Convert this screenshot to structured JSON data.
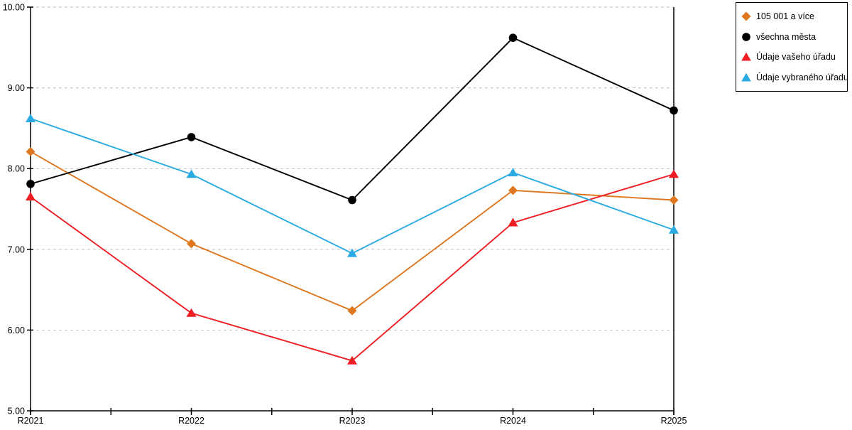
{
  "chart_data": {
    "type": "line",
    "title": "",
    "xlabel": "",
    "ylabel": "",
    "categories": [
      "R2021",
      "R2022",
      "R2023",
      "R2024",
      "R2025"
    ],
    "series": [
      {
        "name": "105 001 a více",
        "marker": "diamond",
        "color": "#DE771F",
        "values": [
          8.21,
          7.07,
          6.24,
          7.73,
          7.61
        ]
      },
      {
        "name": "všechna města",
        "marker": "circle",
        "color": "#000000",
        "values": [
          7.81,
          8.39,
          7.61,
          9.62,
          8.72
        ]
      },
      {
        "name": "Údaje vašeho úřadu",
        "marker": "triangle",
        "color": "#EE1D23",
        "values": [
          7.65,
          6.21,
          5.62,
          7.33,
          7.93
        ]
      },
      {
        "name": "Údaje vybraného úřadu",
        "marker": "triangle",
        "color": "#29ABE2",
        "values": [
          8.62,
          7.93,
          6.95,
          7.95,
          7.24
        ]
      }
    ],
    "yaxis": {
      "min": 5,
      "max": 10,
      "ticks": [
        {
          "value": 10,
          "label": "10.00"
        },
        {
          "value": 9,
          "label": "9.00"
        },
        {
          "value": 8,
          "label": "8.00"
        },
        {
          "value": 7,
          "label": "7.00"
        },
        {
          "value": 6,
          "label": "6.00"
        },
        {
          "value": 5,
          "label": "5.00"
        }
      ]
    },
    "xaxis": {
      "minor_ticks_per_interval": 2
    },
    "grid": {
      "show": true,
      "style": "dashed",
      "color": "#BFBFBF"
    },
    "legend": {
      "position": "top-right",
      "border_color": "#000000"
    },
    "axis_color": "#000000"
  }
}
